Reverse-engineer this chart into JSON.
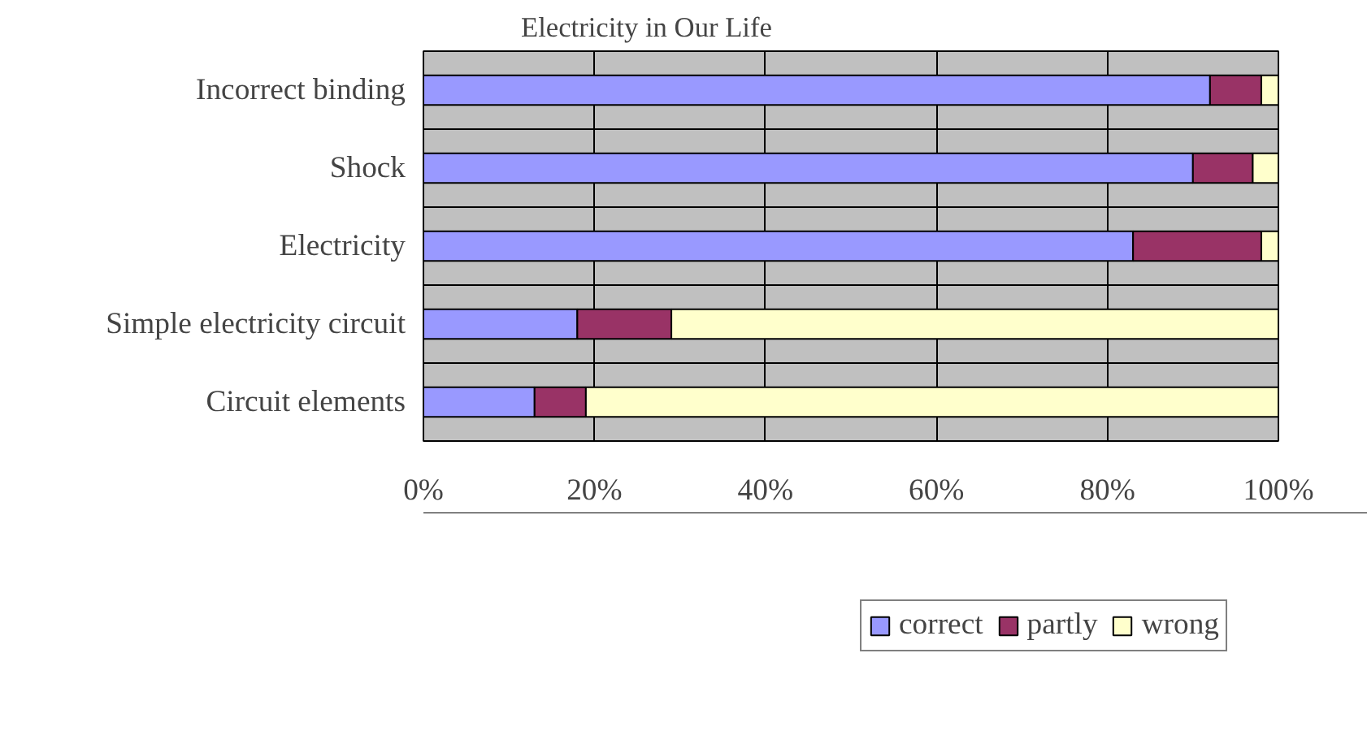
{
  "chart_data": {
    "type": "bar",
    "title": "Electricity in Our Life",
    "orientation": "horizontal",
    "stacked": true,
    "categories": [
      "Incorrect binding",
      "Shock",
      "Electricity",
      "Simple electricity circuit",
      "Circuit elements"
    ],
    "series": [
      {
        "name": "correct",
        "color": "#9999ff",
        "values": [
          92,
          90,
          83,
          18,
          13
        ]
      },
      {
        "name": "partly",
        "color": "#993366",
        "values": [
          6,
          7,
          15,
          11,
          6
        ]
      },
      {
        "name": "wrong",
        "color": "#ffffcc",
        "values": [
          2,
          3,
          2,
          71,
          81
        ]
      }
    ],
    "xlim": [
      0,
      100
    ],
    "xticks": [
      {
        "value": 0,
        "label": "0%"
      },
      {
        "value": 20,
        "label": "20%"
      },
      {
        "value": 40,
        "label": "40%"
      },
      {
        "value": 60,
        "label": "60%"
      },
      {
        "value": 80,
        "label": "80%"
      },
      {
        "value": 100,
        "label": "100%"
      }
    ],
    "grid": true,
    "legend": "bottom"
  }
}
